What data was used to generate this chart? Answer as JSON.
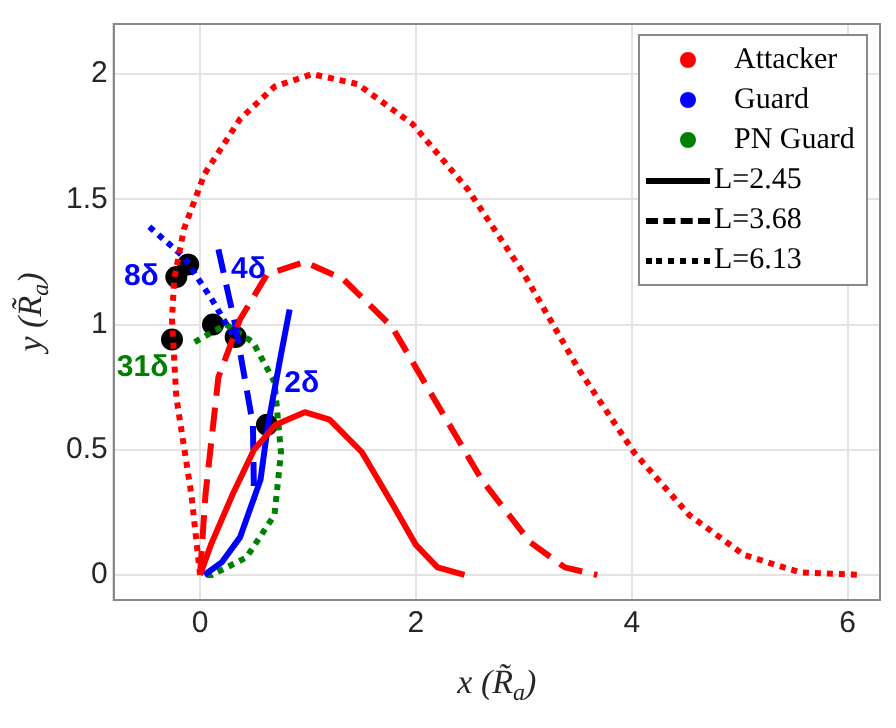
{
  "chart_data": {
    "type": "line",
    "xlabel": "x (R̃$_{a}$)",
    "ylabel": "y (R̃$_{a}$)",
    "xlim": [
      -0.8,
      6.3
    ],
    "ylim": [
      -0.1,
      2.2
    ],
    "xticks": [
      0,
      2,
      4,
      6
    ],
    "yticks": [
      0,
      0.5,
      1,
      1.5,
      2
    ],
    "grid": true,
    "annotations": [
      "Attacker",
      "Guard",
      "PN Guard",
      "L=2.45",
      "L=3.68",
      "L=6.13"
    ],
    "series": [
      {
        "color": "#ff0000",
        "line_style": "solid",
        "marker": "none",
        "x": [
          0,
          0.1,
          0.3,
          0.5,
          0.7,
          0.97,
          1.2,
          1.5,
          1.8,
          2.0,
          2.2,
          2.45
        ],
        "values": [
          0,
          0.12,
          0.32,
          0.5,
          0.6,
          0.65,
          0.62,
          0.49,
          0.27,
          0.12,
          0.03,
          0
        ]
      },
      {
        "color": "#ff0000",
        "line_style": "dashed",
        "marker": "none",
        "x": [
          0,
          0.05,
          0.17,
          0.37,
          0.62,
          0.97,
          1.33,
          1.78,
          2.16,
          2.61,
          3.06,
          3.38,
          3.68
        ],
        "values": [
          0,
          0.32,
          0.79,
          1.02,
          1.2,
          1.25,
          1.18,
          0.99,
          0.71,
          0.38,
          0.13,
          0.03,
          0
        ]
      },
      {
        "color": "#ff0000",
        "line_style": "dotted",
        "marker": "none",
        "x": [
          0,
          -0.08,
          -0.22,
          -0.26,
          -0.24,
          -0.15,
          0.04,
          0.37,
          0.69,
          1.04,
          1.46,
          1.97,
          2.48,
          2.99,
          3.51,
          4.02,
          4.53,
          5.04,
          5.56,
          6.13
        ],
        "values": [
          0,
          0.32,
          0.71,
          1.02,
          1.18,
          1.38,
          1.6,
          1.82,
          1.95,
          2.0,
          1.96,
          1.8,
          1.54,
          1.21,
          0.82,
          0.49,
          0.24,
          0.08,
          0.01,
          0
        ]
      },
      {
        "name": "2δ",
        "color": "#0000ff",
        "line_style": "solid",
        "marker": "none",
        "x": [
          0.04,
          0.2,
          0.37,
          0.56,
          0.63,
          0.75,
          0.83
        ],
        "values": [
          0,
          0.05,
          0.15,
          0.38,
          0.6,
          0.88,
          1.06
        ]
      },
      {
        "name": "4δ",
        "color": "#0000ff",
        "line_style": "dashed",
        "marker": "none",
        "x": [
          0.17,
          0.33,
          0.49,
          0.5
        ],
        "values": [
          1.3,
          0.99,
          0.6,
          0.3
        ]
      },
      {
        "name": "8δ",
        "color": "#0000ff",
        "line_style": "dotted",
        "marker": "none",
        "x": [
          -0.47,
          -0.15,
          0.11,
          0.3
        ],
        "values": [
          1.39,
          1.27,
          1.1,
          0.96
        ]
      },
      {
        "name": "31δ",
        "color": "#008000",
        "line_style": "dotted",
        "marker": "none",
        "x": [
          -0.05,
          0.24,
          0.49,
          0.69,
          0.75,
          0.69,
          0.43,
          0.11,
          0.05
        ],
        "values": [
          0.93,
          1.0,
          0.93,
          0.77,
          0.49,
          0.24,
          0.07,
          0,
          0
        ]
      },
      {
        "type": "scatter",
        "color": "#000000",
        "marker": "circle",
        "x": [
          -0.26,
          -0.22,
          -0.11,
          0.12,
          0.33,
          0.62
        ],
        "values": [
          0.94,
          1.19,
          1.24,
          1.0,
          0.95,
          0.6
        ]
      }
    ]
  }
}
